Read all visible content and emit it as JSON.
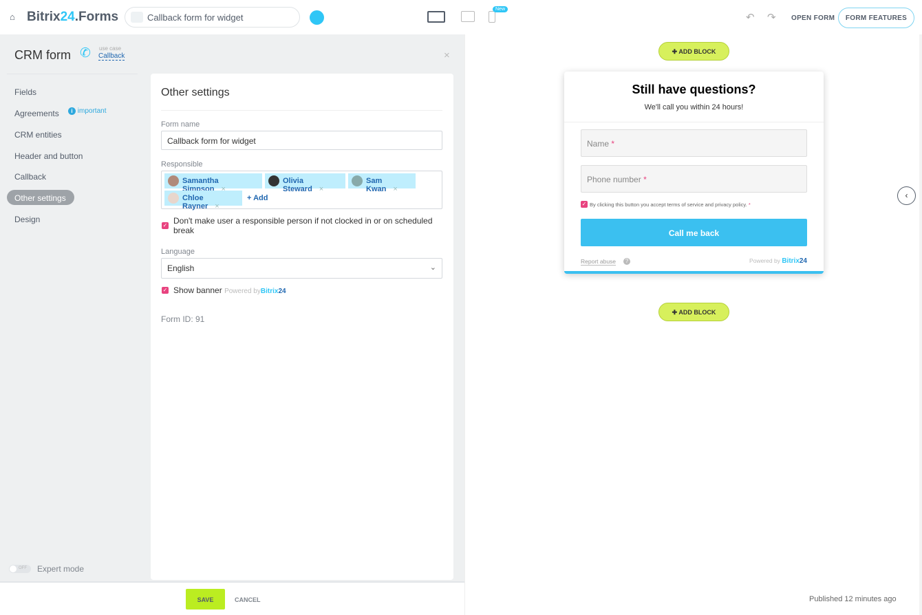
{
  "header": {
    "logo_main": "Bitrix",
    "logo_num": "24",
    "logo_tail": ".Forms",
    "form_title": "Callback form for widget",
    "new_badge": "New",
    "open_form": "OPEN FORM",
    "form_features": "FORM FEATURES"
  },
  "sidebar": {
    "title": "CRM form",
    "use_case_label": "use case",
    "use_case_value": "Callback",
    "items": [
      {
        "label": "Fields"
      },
      {
        "label": "Agreements"
      },
      {
        "label": "CRM entities"
      },
      {
        "label": "Header and button"
      },
      {
        "label": "Callback"
      },
      {
        "label": "Other settings"
      },
      {
        "label": "Design"
      }
    ],
    "important_badge": "important",
    "expert_mode": "Expert mode",
    "toggle_state": "OFF"
  },
  "settings": {
    "heading": "Other settings",
    "form_name_label": "Form name",
    "form_name_value": "Callback form for widget",
    "responsible_label": "Responsible",
    "responsible": [
      "Samantha Simpson",
      "Olivia Steward",
      "Sam Kwan",
      "Chloe Rayner"
    ],
    "add_label": "+ Add",
    "not_clocked_label": "Don't make user a responsible person if not clocked in or on scheduled break",
    "not_clocked_checked": true,
    "language_label": "Language",
    "language_value": "English",
    "show_banner_label": "Show banner",
    "show_banner_checked": true,
    "powered_by": "Powered by",
    "bitrix": "Bitrix",
    "num": "24",
    "form_id": "Form ID: 91"
  },
  "footer": {
    "save": "SAVE",
    "cancel": "CANCEL",
    "published": "Published 12 minutes ago"
  },
  "preview": {
    "add_block": "ADD BLOCK",
    "title": "Still have questions?",
    "subtitle": "We'll call you within 24 hours!",
    "name_ph": "Name",
    "phone_ph": "Phone number",
    "required": "*",
    "consent": "By clicking this button you accept terms of service and privacy policy.",
    "button": "Call me back",
    "report_abuse": "Report abuse",
    "powered_by": "Powered by",
    "bitrix": "Bitrix",
    "num": "24"
  },
  "colors": {
    "accent": "#2fc6f6",
    "save": "#bbed21",
    "checkbox": "#e8437f"
  }
}
